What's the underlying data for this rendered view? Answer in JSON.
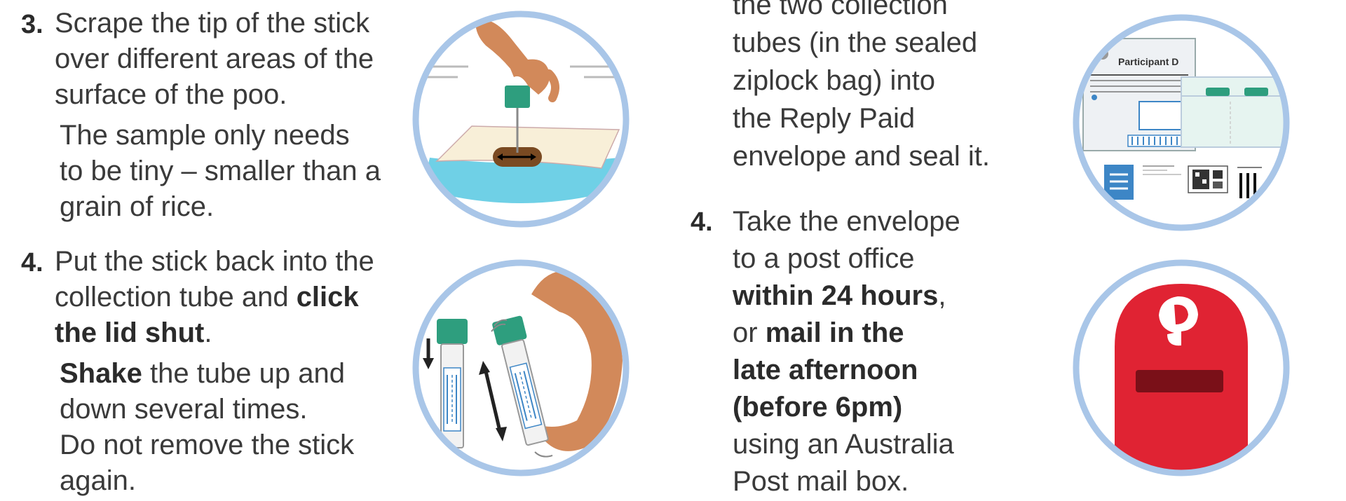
{
  "left": {
    "step3": {
      "number": "3.",
      "lines": [
        "Scrape the tip of the stick",
        "over different areas of the",
        "surface of the poo."
      ],
      "sub_lines": [
        "The sample only needs",
        "to be tiny – smaller than a",
        "grain of rice."
      ],
      "illustration": "scrape-stick-icon"
    },
    "step4": {
      "number": "4.",
      "line1": "Put the stick back into the",
      "line2_text": "collection tube and ",
      "line2_bold": "click",
      "line3_bold": "the lid shut",
      "line3_text": ".",
      "shake_bold": "Shake",
      "shake_text": " the tube up and",
      "sub_lines": [
        "down several times.",
        "Do not remove the stick",
        "again."
      ],
      "illustration": "shake-tube-icon"
    }
  },
  "right": {
    "step3_continued": {
      "lines": [
        "the two collection",
        "tubes (in the sealed",
        "ziplock bag) into",
        "the Reply Paid",
        "envelope and seal it."
      ],
      "illustration": "envelope-form-icon",
      "form_title": "Participant D"
    },
    "step4": {
      "number": "4.",
      "line1": "Take the envelope",
      "line2": "to a post office",
      "bold1": "within 24 hours",
      "after_bold1": ",",
      "line4_text": "or ",
      "line4_bold": "mail in the",
      "bold3": "late afternoon",
      "bold4": "(before 6pm)",
      "line7": "using an Australia",
      "line8": "Post mail box.",
      "illustration": "post-box-icon"
    }
  },
  "colors": {
    "circle_ring": "#a9c6e8",
    "tube_cap": "#2e9e7e",
    "skin": "#d2895a",
    "water": "#6fd0e6",
    "postbox_red": "#e02333",
    "postbox_slot": "#7a1018",
    "barcode_blue": "#3d86c6"
  }
}
